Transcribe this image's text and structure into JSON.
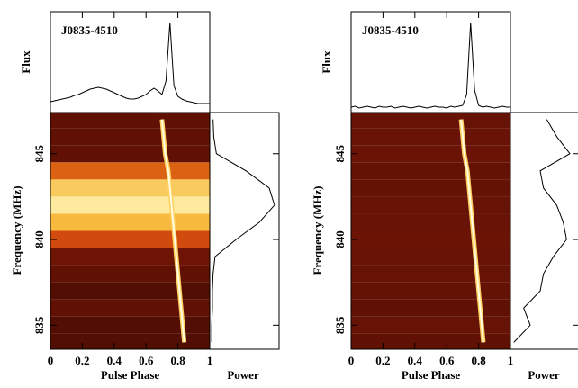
{
  "chart_data": [
    {
      "type": "waterfall",
      "title": "J0835-4510",
      "flux_label": "Flux",
      "ylabel": "Frequency (MHz)",
      "xlabel": "Pulse Phase",
      "power_label": "Power",
      "xlim": [
        0,
        1
      ],
      "xticks": [
        0,
        0.2,
        0.4,
        0.6,
        0.8,
        1
      ],
      "ylim": [
        833.6,
        847.4
      ],
      "yticks": [
        835,
        840,
        845
      ],
      "flux_ylim": [
        0,
        1.08
      ],
      "power_xlim": [
        0,
        1.05
      ],
      "flux_phase": [
        0,
        0.025,
        0.05,
        0.075,
        0.1,
        0.125,
        0.15,
        0.175,
        0.2,
        0.225,
        0.25,
        0.275,
        0.3,
        0.325,
        0.35,
        0.375,
        0.4,
        0.425,
        0.45,
        0.475,
        0.5,
        0.525,
        0.55,
        0.575,
        0.6,
        0.625,
        0.65,
        0.675,
        0.7,
        0.725,
        0.75,
        0.775,
        0.8,
        0.825,
        0.85,
        0.875,
        0.9,
        0.925,
        0.95,
        0.975,
        1
      ],
      "flux": [
        0.12,
        0.13,
        0.14,
        0.15,
        0.16,
        0.17,
        0.19,
        0.2,
        0.22,
        0.24,
        0.26,
        0.27,
        0.28,
        0.27,
        0.26,
        0.24,
        0.22,
        0.2,
        0.18,
        0.16,
        0.15,
        0.15,
        0.16,
        0.18,
        0.2,
        0.24,
        0.27,
        0.24,
        0.2,
        0.35,
        1.0,
        0.3,
        0.18,
        0.15,
        0.13,
        0.12,
        0.11,
        0.1,
        0.1,
        0.1,
        0.1
      ],
      "frequencies": [
        834,
        835,
        836,
        837,
        838,
        839,
        840,
        841,
        842,
        843,
        844,
        845,
        846,
        847
      ],
      "intensity": [
        0.15,
        0.15,
        0.2,
        0.15,
        0.2,
        0.25,
        0.55,
        0.8,
        0.95,
        0.85,
        0.6,
        0.2,
        0.2,
        0.2
      ],
      "power": [
        0.03,
        0.03,
        0.04,
        0.04,
        0.05,
        0.08,
        0.4,
        0.75,
        0.98,
        0.9,
        0.55,
        0.1,
        0.06,
        0.05
      ],
      "pulse_phase": [
        0.84,
        0.83,
        0.82,
        0.81,
        0.8,
        0.79,
        0.78,
        0.77,
        0.76,
        0.75,
        0.74,
        0.72,
        0.71,
        0.7
      ]
    },
    {
      "type": "waterfall",
      "title": "J0835-4510",
      "flux_label": "Flux",
      "ylabel": "Frequency (MHz)",
      "xlabel": "Pulse Phase",
      "power_label": "Power",
      "xlim": [
        0,
        1
      ],
      "xticks": [
        0,
        0.2,
        0.4,
        0.6,
        0.8,
        1
      ],
      "ylim": [
        833.6,
        847.4
      ],
      "yticks": [
        835,
        840,
        845
      ],
      "flux_ylim": [
        0,
        1.08
      ],
      "power_xlim": [
        0,
        1.05
      ],
      "flux_phase": [
        0,
        0.025,
        0.05,
        0.075,
        0.1,
        0.125,
        0.15,
        0.175,
        0.2,
        0.225,
        0.25,
        0.275,
        0.3,
        0.325,
        0.35,
        0.375,
        0.4,
        0.425,
        0.45,
        0.475,
        0.5,
        0.525,
        0.55,
        0.575,
        0.6,
        0.625,
        0.65,
        0.675,
        0.7,
        0.725,
        0.75,
        0.775,
        0.8,
        0.825,
        0.85,
        0.875,
        0.9,
        0.925,
        0.95,
        0.975,
        1
      ],
      "flux": [
        0.06,
        0.07,
        0.05,
        0.06,
        0.07,
        0.06,
        0.05,
        0.07,
        0.06,
        0.06,
        0.07,
        0.05,
        0.06,
        0.07,
        0.06,
        0.05,
        0.06,
        0.07,
        0.06,
        0.05,
        0.06,
        0.07,
        0.06,
        0.06,
        0.05,
        0.07,
        0.06,
        0.07,
        0.08,
        0.2,
        1.0,
        0.25,
        0.08,
        0.06,
        0.07,
        0.06,
        0.05,
        0.06,
        0.07,
        0.06,
        0.06
      ],
      "frequencies": [
        834,
        835,
        836,
        837,
        838,
        839,
        840,
        841,
        842,
        843,
        844,
        845,
        846,
        847
      ],
      "intensity": [
        0.2,
        0.22,
        0.2,
        0.21,
        0.22,
        0.23,
        0.24,
        0.23,
        0.22,
        0.21,
        0.21,
        0.24,
        0.23,
        0.22
      ],
      "power": [
        0.05,
        0.3,
        0.2,
        0.45,
        0.5,
        0.65,
        0.85,
        0.8,
        0.7,
        0.5,
        0.45,
        0.9,
        0.7,
        0.55
      ],
      "pulse_phase": [
        0.83,
        0.82,
        0.81,
        0.8,
        0.79,
        0.78,
        0.77,
        0.76,
        0.75,
        0.74,
        0.73,
        0.71,
        0.7,
        0.69
      ]
    }
  ]
}
